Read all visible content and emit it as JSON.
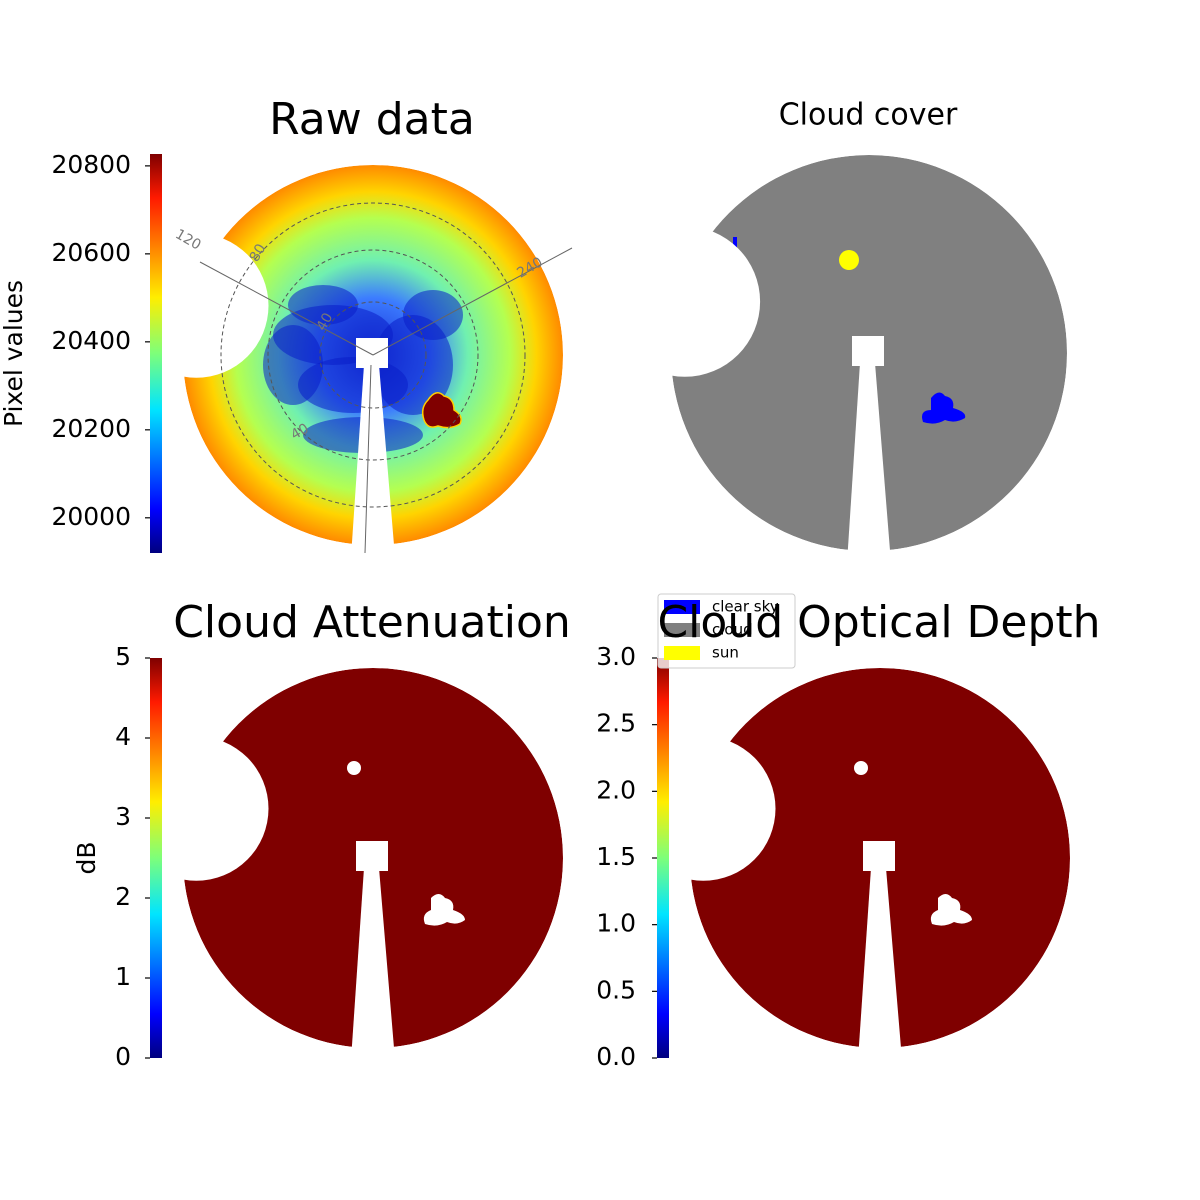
{
  "chart_data": [
    {
      "type": "image",
      "title": "Raw data",
      "colormap": "jet",
      "colorbar": {
        "label": "Pixel values",
        "lim": [
          19920,
          20827
        ],
        "ticks": [
          20000,
          20200,
          20400,
          20600,
          20800
        ]
      },
      "annotations": [
        "120",
        "240",
        "80",
        "40",
        "40"
      ]
    },
    {
      "type": "image",
      "title": "Cloud cover",
      "legend": [
        {
          "name": "clear sky",
          "color": "#0000ff"
        },
        {
          "name": "cloud",
          "color": "#808080"
        },
        {
          "name": "sun",
          "color": "#ffff00"
        }
      ]
    },
    {
      "type": "image",
      "title": "Cloud Attenuation",
      "colormap": "jet",
      "fill": "#7f0000",
      "colorbar": {
        "label": "dB",
        "lim": [
          0,
          5
        ],
        "ticks": [
          0,
          1,
          2,
          3,
          4,
          5
        ]
      }
    },
    {
      "type": "image",
      "title": "Cloud Optical Depth",
      "colormap": "jet",
      "fill": "#7f0000",
      "colorbar": {
        "lim": [
          0,
          3
        ],
        "ticks": [
          {
            "value": 0,
            "label": "0.0"
          },
          {
            "value": 0.5,
            "label": "0.5"
          },
          {
            "value": 1,
            "label": "1.0"
          },
          {
            "value": 1.5,
            "label": "1.5"
          },
          {
            "value": 2,
            "label": "2.0"
          },
          {
            "value": 2.5,
            "label": "2.5"
          },
          {
            "value": 3,
            "label": "3.0"
          }
        ]
      }
    }
  ]
}
